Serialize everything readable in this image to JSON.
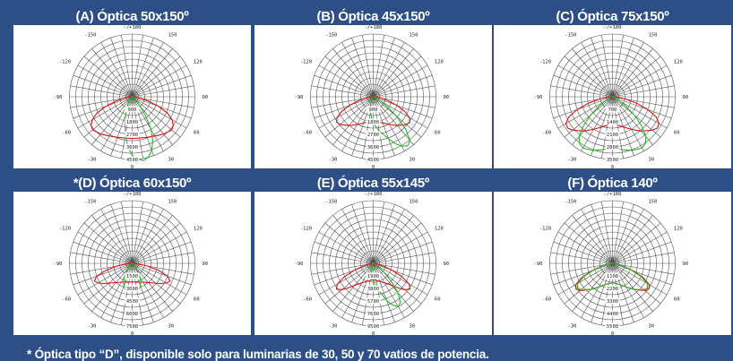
{
  "colors": {
    "background": "#2d4f86",
    "panel": "#ffffff",
    "grid": "#555555",
    "curve_c0": "#dd1111",
    "curve_c90": "#22bb22"
  },
  "angle_labels": {
    "top": "-/+180",
    "left_150": "-150",
    "left_120": "-120",
    "left_90": "-90",
    "left_60": "-60",
    "left_30": "-30",
    "right_150": "150",
    "right_120": "120",
    "right_90": "90",
    "right_60": "60",
    "right_30": "30",
    "bottom": "0",
    "center": "0"
  },
  "panels": [
    {
      "title": "(A) Óptica 50x150º",
      "radial_labels": [
        "900",
        "1800",
        "2700",
        "3600",
        "4500"
      ],
      "max": 4500,
      "c0": [
        [
          0,
          3000
        ],
        [
          10,
          3000
        ],
        [
          20,
          3100
        ],
        [
          30,
          3250
        ],
        [
          40,
          3500
        ],
        [
          50,
          3700
        ],
        [
          55,
          3600
        ],
        [
          60,
          3300
        ],
        [
          65,
          2800
        ],
        [
          70,
          2000
        ],
        [
          75,
          1200
        ],
        [
          80,
          600
        ],
        [
          85,
          250
        ],
        [
          90,
          120
        ]
      ],
      "c90": [
        [
          0,
          4200
        ],
        [
          5,
          4500
        ],
        [
          10,
          4650
        ],
        [
          15,
          4500
        ],
        [
          20,
          4100
        ],
        [
          25,
          3500
        ],
        [
          30,
          2700
        ],
        [
          35,
          1700
        ],
        [
          40,
          900
        ],
        [
          45,
          450
        ],
        [
          50,
          220
        ],
        [
          60,
          100
        ],
        [
          70,
          60
        ],
        [
          90,
          30
        ]
      ],
      "c90_mirror": [
        [
          0,
          4200
        ],
        [
          5,
          3600
        ],
        [
          10,
          2800
        ],
        [
          15,
          2000
        ],
        [
          20,
          1400
        ],
        [
          25,
          900
        ],
        [
          30,
          550
        ],
        [
          35,
          350
        ],
        [
          40,
          220
        ],
        [
          50,
          120
        ],
        [
          60,
          70
        ],
        [
          90,
          30
        ]
      ]
    },
    {
      "title": "(B) Óptica 45x150º",
      "radial_labels": [
        "900",
        "1800",
        "2700",
        "3600",
        "4500"
      ],
      "max": 4500,
      "c0": [
        [
          0,
          1800
        ],
        [
          10,
          1850
        ],
        [
          20,
          2000
        ],
        [
          30,
          2300
        ],
        [
          40,
          2700
        ],
        [
          50,
          3100
        ],
        [
          55,
          3200
        ],
        [
          60,
          3000
        ],
        [
          65,
          2500
        ],
        [
          70,
          1800
        ],
        [
          75,
          1100
        ],
        [
          80,
          550
        ],
        [
          85,
          250
        ],
        [
          90,
          120
        ]
      ],
      "c90": [
        [
          0,
          1900
        ],
        [
          10,
          2500
        ],
        [
          20,
          3200
        ],
        [
          25,
          3700
        ],
        [
          30,
          4100
        ],
        [
          35,
          4300
        ],
        [
          40,
          4100
        ],
        [
          45,
          3300
        ],
        [
          50,
          2200
        ],
        [
          55,
          1200
        ],
        [
          60,
          500
        ],
        [
          70,
          150
        ],
        [
          90,
          50
        ]
      ],
      "c90_mirror": [
        [
          0,
          1900
        ],
        [
          5,
          1500
        ],
        [
          10,
          1100
        ],
        [
          15,
          800
        ],
        [
          20,
          550
        ],
        [
          30,
          300
        ],
        [
          40,
          180
        ],
        [
          60,
          90
        ],
        [
          90,
          40
        ]
      ]
    },
    {
      "title": "(C) Óptica 75x150º",
      "radial_labels": [
        "700",
        "1400",
        "2100",
        "2800",
        "3500"
      ],
      "max": 3500,
      "c0": [
        [
          0,
          1500
        ],
        [
          10,
          1600
        ],
        [
          20,
          1800
        ],
        [
          30,
          2100
        ],
        [
          40,
          2500
        ],
        [
          50,
          2900
        ],
        [
          55,
          3050
        ],
        [
          60,
          3000
        ],
        [
          65,
          2700
        ],
        [
          70,
          2100
        ],
        [
          75,
          1400
        ],
        [
          80,
          700
        ],
        [
          85,
          300
        ],
        [
          90,
          150
        ]
      ],
      "c90": [
        [
          0,
          2800
        ],
        [
          10,
          3000
        ],
        [
          20,
          3200
        ],
        [
          30,
          3300
        ],
        [
          35,
          3200
        ],
        [
          40,
          2900
        ],
        [
          45,
          2300
        ],
        [
          50,
          1600
        ],
        [
          55,
          900
        ],
        [
          60,
          450
        ],
        [
          70,
          150
        ],
        [
          90,
          50
        ]
      ],
      "c90_mirror": [
        [
          0,
          2800
        ],
        [
          10,
          3000
        ],
        [
          20,
          3200
        ],
        [
          30,
          3300
        ],
        [
          35,
          3200
        ],
        [
          40,
          2900
        ],
        [
          45,
          2300
        ],
        [
          50,
          1600
        ],
        [
          55,
          900
        ],
        [
          60,
          450
        ],
        [
          70,
          150
        ],
        [
          90,
          50
        ]
      ]
    },
    {
      "title": "*(D) Óptica 60x150º",
      "radial_labels": [
        "1500",
        "3000",
        "4500",
        "6000",
        "7500"
      ],
      "max": 7500,
      "c0": [
        [
          0,
          2200
        ],
        [
          10,
          2300
        ],
        [
          20,
          2400
        ],
        [
          30,
          2600
        ],
        [
          40,
          3000
        ],
        [
          50,
          3700
        ],
        [
          55,
          4200
        ],
        [
          60,
          4700
        ],
        [
          65,
          5000
        ],
        [
          70,
          4500
        ],
        [
          75,
          3300
        ],
        [
          80,
          1800
        ],
        [
          85,
          700
        ],
        [
          90,
          250
        ]
      ],
      "c90": [
        [
          0,
          2800
        ],
        [
          5,
          3100
        ],
        [
          10,
          3300
        ],
        [
          15,
          3200
        ],
        [
          20,
          2900
        ],
        [
          25,
          2400
        ],
        [
          30,
          1800
        ],
        [
          35,
          1200
        ],
        [
          40,
          700
        ],
        [
          50,
          300
        ],
        [
          60,
          120
        ],
        [
          90,
          40
        ]
      ],
      "c90_mirror": [
        [
          0,
          2800
        ],
        [
          5,
          3100
        ],
        [
          10,
          3300
        ],
        [
          15,
          3200
        ],
        [
          20,
          2900
        ],
        [
          25,
          2400
        ],
        [
          30,
          1800
        ],
        [
          35,
          1200
        ],
        [
          40,
          700
        ],
        [
          50,
          300
        ],
        [
          60,
          120
        ],
        [
          90,
          40
        ]
      ]
    },
    {
      "title": "(E) Óptica 55x145º",
      "radial_labels": [
        "1900",
        "3800",
        "5700",
        "7600",
        "9500"
      ],
      "max": 9500,
      "c0": [
        [
          0,
          2500
        ],
        [
          10,
          2600
        ],
        [
          20,
          2900
        ],
        [
          30,
          3400
        ],
        [
          40,
          4300
        ],
        [
          45,
          5200
        ],
        [
          50,
          6200
        ],
        [
          55,
          6800
        ],
        [
          60,
          6300
        ],
        [
          65,
          4800
        ],
        [
          70,
          3000
        ],
        [
          75,
          1600
        ],
        [
          80,
          700
        ],
        [
          90,
          200
        ]
      ],
      "c90": [
        [
          0,
          2600
        ],
        [
          10,
          4000
        ],
        [
          20,
          6000
        ],
        [
          25,
          7000
        ],
        [
          30,
          7600
        ],
        [
          35,
          7200
        ],
        [
          40,
          5800
        ],
        [
          45,
          3900
        ],
        [
          50,
          2200
        ],
        [
          55,
          1100
        ],
        [
          60,
          500
        ],
        [
          70,
          150
        ],
        [
          90,
          40
        ]
      ],
      "c90_mirror": [
        [
          0,
          2600
        ],
        [
          5,
          2000
        ],
        [
          10,
          1500
        ],
        [
          15,
          1100
        ],
        [
          20,
          800
        ],
        [
          30,
          450
        ],
        [
          40,
          250
        ],
        [
          60,
          100
        ],
        [
          90,
          40
        ]
      ]
    },
    {
      "title": "(F) Óptica 140º",
      "radial_labels": [
        "1100",
        "2200",
        "3300",
        "4400",
        "5500"
      ],
      "max": 5500,
      "c0": [
        [
          0,
          1700
        ],
        [
          10,
          1800
        ],
        [
          20,
          2000
        ],
        [
          30,
          2400
        ],
        [
          40,
          3000
        ],
        [
          50,
          3700
        ],
        [
          55,
          3900
        ],
        [
          60,
          3700
        ],
        [
          65,
          3000
        ],
        [
          70,
          2000
        ],
        [
          75,
          1100
        ],
        [
          80,
          500
        ],
        [
          90,
          120
        ]
      ],
      "c90": [
        [
          0,
          1700
        ],
        [
          10,
          1800
        ],
        [
          20,
          2000
        ],
        [
          30,
          2400
        ],
        [
          40,
          3000
        ],
        [
          50,
          3600
        ],
        [
          55,
          3750
        ],
        [
          60,
          3500
        ],
        [
          65,
          2800
        ],
        [
          70,
          1800
        ],
        [
          75,
          1000
        ],
        [
          80,
          450
        ],
        [
          90,
          100
        ]
      ],
      "c90_mirror": [
        [
          0,
          1700
        ],
        [
          10,
          1800
        ],
        [
          20,
          2000
        ],
        [
          30,
          2400
        ],
        [
          40,
          3000
        ],
        [
          50,
          3600
        ],
        [
          55,
          3750
        ],
        [
          60,
          3500
        ],
        [
          65,
          2800
        ],
        [
          70,
          1800
        ],
        [
          75,
          1000
        ],
        [
          80,
          450
        ],
        [
          90,
          100
        ]
      ]
    }
  ],
  "footnote": "* Óptica tipo “D”, disponible solo para luminarias de 30, 50 y 70 vatios de potencia."
}
